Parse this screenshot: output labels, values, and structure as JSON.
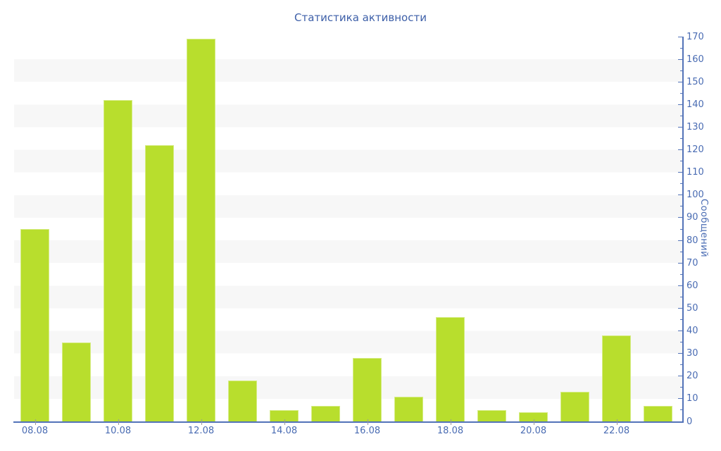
{
  "chart_data": {
    "type": "bar",
    "title": "Статистика активности",
    "ylabel": "Сообщений",
    "xlabel": "",
    "categories": [
      "08.08",
      "",
      "10.08",
      "",
      "12.08",
      "",
      "14.08",
      "",
      "16.08",
      "",
      "18.08",
      "",
      "20.08",
      "",
      "22.08",
      ""
    ],
    "values": [
      85,
      35,
      142,
      122,
      169,
      18,
      5,
      7,
      28,
      11,
      46,
      5,
      4,
      13,
      38,
      7
    ],
    "ylim": [
      0,
      170
    ],
    "y_major_step": 10,
    "y_minor_step": 5,
    "grid": "striped-horizontal-bands",
    "legend": "none",
    "y_axis_position": "right",
    "colors": {
      "bar": "#b8de2d",
      "bar_border": "#d6ec85",
      "axis": "#5373b8",
      "label": "#4a6cb3",
      "title": "#3d5fa8",
      "stripe": "#f7f7f7",
      "x_tick": "#999999",
      "background": "#ffffff"
    }
  }
}
